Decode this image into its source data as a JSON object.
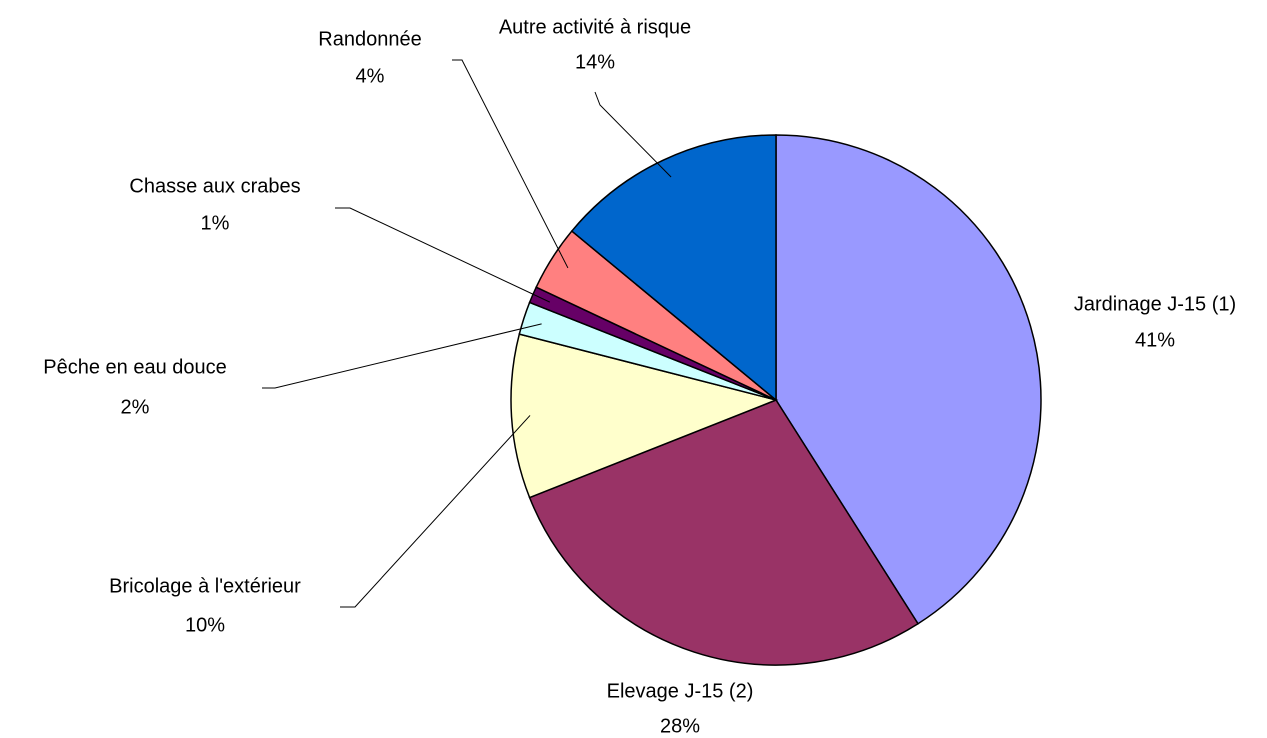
{
  "chart_data": {
    "type": "pie",
    "categories": [
      "Jardinage J-15 (1)",
      "Elevage J-15 (2)",
      "Bricolage à l'extérieur",
      "Pêche en eau douce",
      "Chasse aux crabes",
      "Randonnée",
      "Autre activité à risque"
    ],
    "values": [
      41,
      28,
      10,
      2,
      1,
      4,
      14
    ],
    "value_labels": [
      "41%",
      "28%",
      "10%",
      "2%",
      "1%",
      "4%",
      "14%"
    ],
    "colors": [
      "#9999ff",
      "#993366",
      "#ffffcc",
      "#ccffff",
      "#660066",
      "#ff8080",
      "#0066cc"
    ]
  }
}
